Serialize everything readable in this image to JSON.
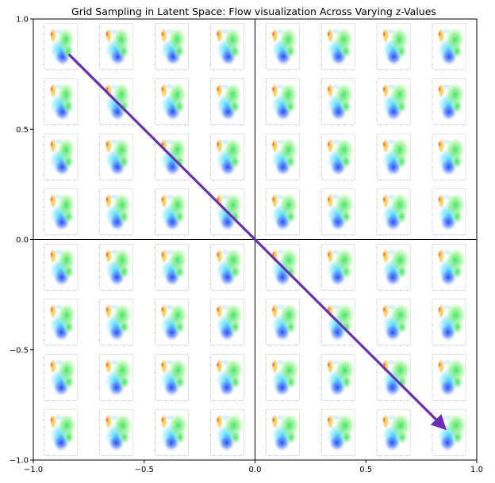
{
  "chart_data": {
    "type": "image-grid",
    "title": "Grid Sampling in Latent Space: Flow visualization Across Varying z-Values",
    "xlabel": "",
    "ylabel": "",
    "xlim": [
      -1.0,
      1.0
    ],
    "ylim": [
      -1.0,
      1.0
    ],
    "x_ticks": [
      -1.0,
      -0.5,
      0.0,
      0.5,
      1.0
    ],
    "x_tick_labels": [
      "−1.0",
      "−0.5",
      "0.0",
      "0.5",
      "1.0"
    ],
    "y_ticks": [
      1.0,
      0.5,
      0.0,
      -0.5,
      -1.0
    ],
    "y_tick_labels": [
      "1.0",
      "0.5",
      "0.0",
      "−0.5",
      "−1.0"
    ],
    "grid": false,
    "zero_lines": true,
    "grid_rows": 8,
    "grid_cols": 8,
    "sample_centers_x": [
      -0.875,
      -0.625,
      -0.375,
      -0.125,
      0.125,
      0.375,
      0.625,
      0.875
    ],
    "sample_centers_y": [
      0.875,
      0.625,
      0.375,
      0.125,
      -0.125,
      -0.375,
      -0.625,
      -0.875
    ],
    "arrow": {
      "from": [
        -0.84,
        0.84
      ],
      "to": [
        0.84,
        -0.84
      ],
      "color": "#6a2fb5"
    },
    "colors": {
      "axis": "#000000",
      "thumb_border": "#cfcfcf"
    }
  }
}
